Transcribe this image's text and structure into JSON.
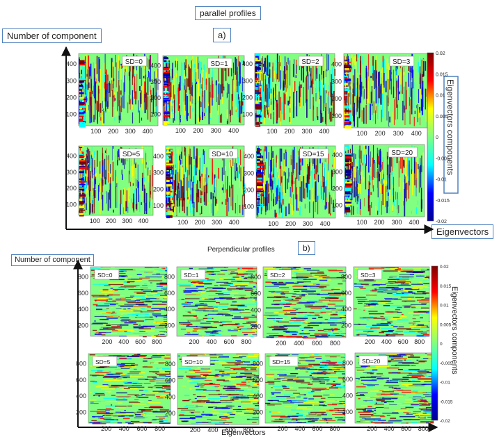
{
  "panel_a": {
    "title": "parallel profiles",
    "letter": "a)",
    "y_axis_label": "Number of component",
    "x_axis_label": "Eigenvectors",
    "colorbar_label": "Eigenvectors components"
  },
  "panel_b": {
    "title": "Perpendicular profiles",
    "letter": "b)",
    "y_axis_label": "Number of component",
    "x_axis_label": "Eigenvectors",
    "colorbar_label": "Eigenvectors components"
  },
  "chart_data": [
    {
      "type": "heatmap",
      "group": "parallel profiles",
      "colormap": [
        "#00008f",
        "#0000ff",
        "#00ffff",
        "#80ff80",
        "#ffff00",
        "#ff0000",
        "#800000"
      ],
      "background_color": "#80ff80",
      "colorbar": {
        "min": -0.02,
        "max": 0.02,
        "ticks": [
          "0.02",
          "0.015",
          "0.01",
          "0.005",
          "0",
          "-0.005",
          "-0.01",
          "-0.015",
          "-0.02"
        ],
        "tick_values": [
          0.02,
          0.015,
          0.01,
          0.005,
          0,
          -0.005,
          -0.01,
          -0.015,
          -0.02
        ]
      },
      "panels": [
        {
          "label": "SD=0",
          "x_ticks": [
            "100",
            "200",
            "300",
            "400"
          ],
          "y_ticks": [
            "400",
            "300",
            "200",
            "100"
          ]
        },
        {
          "label": "SD=1",
          "x_ticks": [
            "100",
            "200",
            "300",
            "400"
          ],
          "y_ticks": [
            "400",
            "300",
            "200",
            "100"
          ]
        },
        {
          "label": "SD=2",
          "x_ticks": [
            "100",
            "200",
            "300",
            "400"
          ],
          "y_ticks": [
            "400",
            "300",
            "200",
            "100"
          ]
        },
        {
          "label": "SD=3",
          "x_ticks": [
            "100",
            "200",
            "300",
            "400"
          ],
          "y_ticks": [
            "400",
            "300",
            "200",
            "100"
          ]
        },
        {
          "label": "SD=5",
          "x_ticks": [
            "100",
            "200",
            "300",
            "400"
          ],
          "y_ticks": [
            "400",
            "300",
            "200",
            "100"
          ]
        },
        {
          "label": "SD=10",
          "x_ticks": [
            "100",
            "200",
            "300",
            "400"
          ],
          "y_ticks": [
            "400",
            "300",
            "200",
            "100"
          ]
        },
        {
          "label": "SD=15",
          "x_ticks": [
            "100",
            "200",
            "300",
            "400"
          ],
          "y_ticks": [
            "400",
            "300",
            "200",
            "100"
          ]
        },
        {
          "label": "SD=20",
          "x_ticks": [
            "100",
            "200",
            "300",
            "400"
          ],
          "y_ticks": [
            "400",
            "300",
            "200",
            "100"
          ]
        }
      ]
    },
    {
      "type": "heatmap",
      "group": "Perpendicular profiles",
      "colormap": [
        "#00008f",
        "#0000ff",
        "#00ffff",
        "#80ff80",
        "#ffff00",
        "#ff0000",
        "#800000"
      ],
      "background_color": "#80ff80",
      "colorbar": {
        "min": -0.02,
        "max": 0.02,
        "ticks": [
          "0.02",
          "0.015",
          "0.01",
          "0.005",
          "0",
          "-0.005",
          "-0.01",
          "-0.015",
          "-0.02"
        ],
        "tick_values": [
          0.02,
          0.015,
          0.01,
          0.005,
          0,
          -0.005,
          -0.01,
          -0.015,
          -0.02
        ]
      },
      "panels": [
        {
          "label": "SD=0",
          "x_ticks": [
            "200",
            "400",
            "600",
            "800"
          ],
          "y_ticks": [
            "800",
            "600",
            "400",
            "200"
          ]
        },
        {
          "label": "SD=1",
          "x_ticks": [
            "200",
            "400",
            "600",
            "800"
          ],
          "y_ticks": [
            "800",
            "600",
            "400",
            "200"
          ]
        },
        {
          "label": "SD=2",
          "x_ticks": [
            "200",
            "400",
            "600",
            "800"
          ],
          "y_ticks": [
            "800",
            "600",
            "400",
            "200"
          ]
        },
        {
          "label": "SD=3",
          "x_ticks": [
            "200",
            "400",
            "600",
            "800"
          ],
          "y_ticks": [
            "800",
            "600",
            "400",
            "200"
          ]
        },
        {
          "label": "SD=5",
          "x_ticks": [
            "200",
            "400",
            "600",
            "800"
          ],
          "y_ticks": [
            "800",
            "600",
            "400",
            "200"
          ]
        },
        {
          "label": "SD=10",
          "x_ticks": [
            "200",
            "400",
            "600",
            "800"
          ],
          "y_ticks": [
            "800",
            "600",
            "400",
            "200"
          ]
        },
        {
          "label": "SD=15",
          "x_ticks": [
            "200",
            "400",
            "600",
            "800"
          ],
          "y_ticks": [
            "800",
            "600",
            "400",
            "200"
          ]
        },
        {
          "label": "SD=20",
          "x_ticks": [
            "200",
            "400",
            "600",
            "800"
          ],
          "y_ticks": [
            "800",
            "600",
            "400",
            "200"
          ]
        }
      ]
    }
  ]
}
